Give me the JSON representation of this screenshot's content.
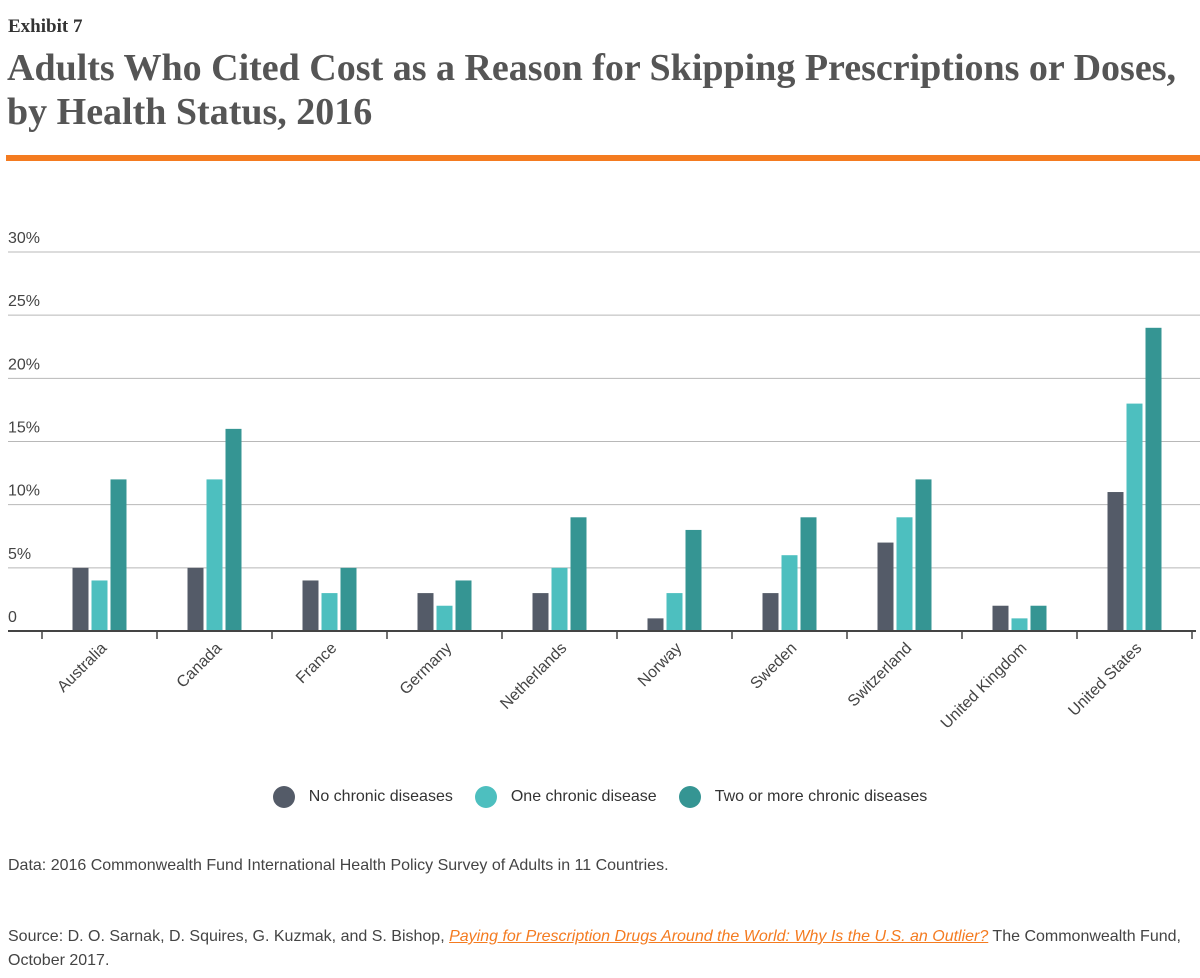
{
  "header": {
    "exhibit": "Exhibit 7",
    "title": "Adults Who Cited Cost as a Reason for Skipping Prescriptions or Doses, by Health Status, 2016"
  },
  "colors": {
    "accent_rule": "#f47b20",
    "series": [
      "#545b68",
      "#4dbfbf",
      "#359593"
    ]
  },
  "chart_data": {
    "type": "bar",
    "categories": [
      "Australia",
      "Canada",
      "France",
      "Germany",
      "Netherlands",
      "Norway",
      "Sweden",
      "Switzerland",
      "United Kingdom",
      "United States"
    ],
    "series": [
      {
        "name": "No chronic diseases",
        "values": [
          5,
          5,
          4,
          3,
          3,
          1,
          3,
          7,
          2,
          11
        ]
      },
      {
        "name": "One chronic disease",
        "values": [
          4,
          12,
          3,
          2,
          5,
          3,
          6,
          9,
          1,
          18
        ]
      },
      {
        "name": "Two or more chronic diseases",
        "values": [
          12,
          16,
          5,
          4,
          9,
          8,
          9,
          12,
          2,
          24
        ]
      }
    ],
    "yticks": [
      "0",
      "5%",
      "10%",
      "15%",
      "20%",
      "25%",
      "30%"
    ],
    "ylim": [
      0,
      30
    ],
    "grid": true,
    "legend": "bottom"
  },
  "footer": {
    "data_note": "Data: 2016 Commonwealth Fund International Health Policy Survey of Adults in 11 Countries.",
    "source_prefix": "Source: D. O. Sarnak, D. Squires, G. Kuzmak, and S. Bishop, ",
    "source_link": "Paying for Prescription Drugs Around the World: Why Is the U.S. an Outlier?",
    "source_suffix": " The Commonwealth Fund, October 2017."
  }
}
